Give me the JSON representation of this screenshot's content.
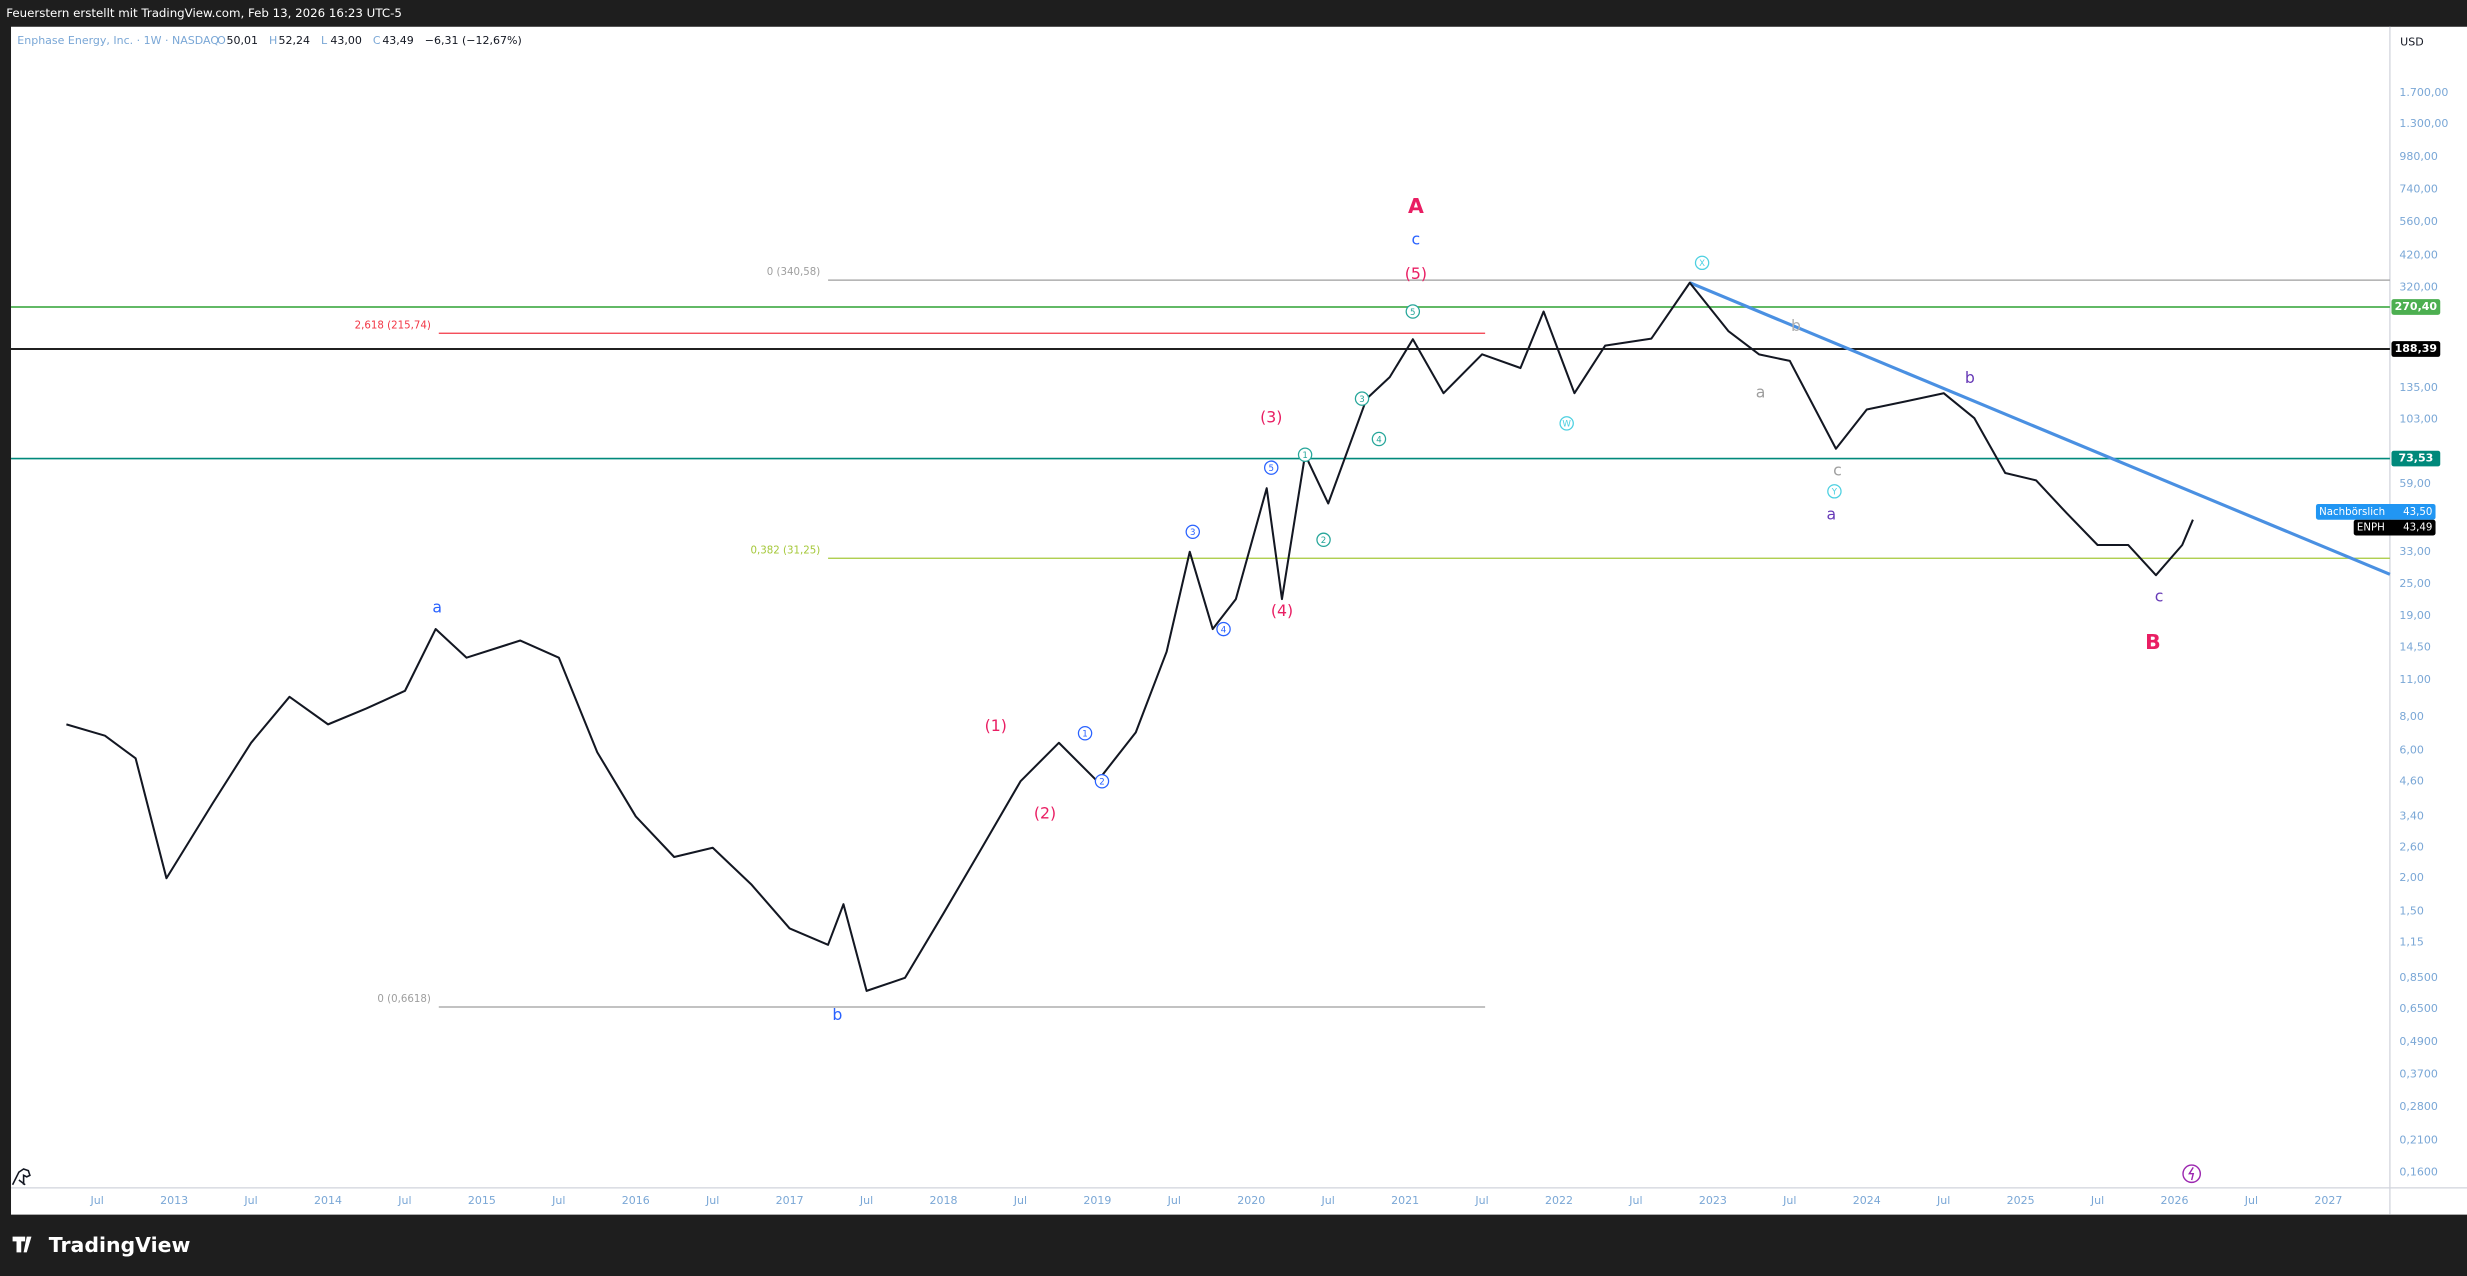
{
  "header": {
    "caption": "Feuerstern erstellt mit TradingView.com, Feb 13, 2026 16:23 UTC-5",
    "symbol": "Enphase Energy, Inc. · 1W · NASDAQ",
    "ohlc": [
      {
        "key": "O",
        "label": "50,01"
      },
      {
        "key": "H",
        "label": "52,24"
      },
      {
        "key": "L",
        "label": "43,00"
      },
      {
        "key": "C",
        "label": "43,49"
      }
    ],
    "change": "−6,31 (−12,67%)",
    "currency": "USD"
  },
  "footer": {
    "brand": "TradingView"
  },
  "chart_data": {
    "type": "line",
    "ylog": true,
    "grid": false,
    "xlim": [
      2011.94,
      2027.4
    ],
    "ylim": [
      0.14,
      3000
    ],
    "xticks": [
      {
        "value": 2012.5,
        "label": "Jul"
      },
      2013,
      {
        "value": 2013.5,
        "label": "Jul"
      },
      2014,
      {
        "value": 2014.5,
        "label": "Jul"
      },
      2015,
      {
        "value": 2015.5,
        "label": "Jul"
      },
      2016,
      {
        "value": 2016.5,
        "label": "Jul"
      },
      2017,
      {
        "value": 2017.5,
        "label": "Jul"
      },
      2018,
      {
        "value": 2018.5,
        "label": "Jul"
      },
      2019,
      {
        "value": 2019.5,
        "label": "Jul"
      },
      2020,
      {
        "value": 2020.5,
        "label": "Jul"
      },
      2021,
      {
        "value": 2021.5,
        "label": "Jul"
      },
      2022,
      {
        "value": 2022.5,
        "label": "Jul"
      },
      2023,
      {
        "value": 2023.5,
        "label": "Jul"
      },
      2024,
      {
        "value": 2024.5,
        "label": "Jul"
      },
      2025,
      {
        "value": 2025.5,
        "label": "Jul"
      },
      2026,
      {
        "value": 2026.5,
        "label": "Jul"
      },
      2027
    ],
    "yticks": [
      {
        "value": 1700,
        "label": "1.700,00"
      },
      {
        "value": 1300,
        "label": "1.300,00"
      },
      {
        "value": 980,
        "label": "980,00"
      },
      {
        "value": 740,
        "label": "740,00"
      },
      {
        "value": 560,
        "label": "560,00"
      },
      {
        "value": 420,
        "label": "420,00"
      },
      {
        "value": 320,
        "label": "320,00"
      },
      {
        "value": 135,
        "label": "135,00"
      },
      {
        "value": 103,
        "label": "103,00"
      },
      {
        "value": 59,
        "label": "59,00"
      },
      {
        "value": 33,
        "label": "33,00"
      },
      {
        "value": 25,
        "label": "25,00"
      },
      {
        "value": 19,
        "label": "19,00"
      },
      {
        "value": 14.5,
        "label": "14,50"
      },
      {
        "value": 11,
        "label": "11,00"
      },
      {
        "value": 8,
        "label": "8,00"
      },
      {
        "value": 6,
        "label": "6,00"
      },
      {
        "value": 4.6,
        "label": "4,60"
      },
      {
        "value": 3.4,
        "label": "3,40"
      },
      {
        "value": 2.6,
        "label": "2,60"
      },
      {
        "value": 2,
        "label": "2,00"
      },
      {
        "value": 1.5,
        "label": "1,50"
      },
      {
        "value": 1.15,
        "label": "1,15"
      },
      {
        "value": 0.85,
        "label": "0,8500"
      },
      {
        "value": 0.65,
        "label": "0,6500"
      },
      {
        "value": 0.49,
        "label": "0,4900"
      },
      {
        "value": 0.37,
        "label": "0,3700"
      },
      {
        "value": 0.28,
        "label": "0,2800"
      },
      {
        "value": 0.21,
        "label": "0,2100"
      },
      {
        "value": 0.16,
        "label": "0,1600"
      }
    ],
    "series": [
      {
        "name": "ENPH",
        "color": "#131722",
        "x": [
          2012.3,
          2012.55,
          2012.75,
          2012.95,
          2013.25,
          2013.5,
          2013.75,
          2014.0,
          2014.25,
          2014.5,
          2014.7,
          2014.9,
          2015.25,
          2015.5,
          2015.75,
          2016.0,
          2016.25,
          2016.5,
          2016.75,
          2017.0,
          2017.25,
          2017.35,
          2017.5,
          2017.75,
          2018.0,
          2018.25,
          2018.5,
          2018.75,
          2019.0,
          2019.25,
          2019.45,
          2019.6,
          2019.75,
          2019.9,
          2020.1,
          2020.2,
          2020.35,
          2020.5,
          2020.75,
          2020.9,
          2021.05,
          2021.25,
          2021.5,
          2021.75,
          2021.9,
          2022.1,
          2022.3,
          2022.6,
          2022.85,
          2023.1,
          2023.3,
          2023.5,
          2023.8,
          2024.0,
          2024.25,
          2024.5,
          2024.7,
          2024.9,
          2025.1,
          2025.3,
          2025.5,
          2025.7,
          2025.88,
          2026.05,
          2026.12
        ],
        "values": [
          7.5,
          6.8,
          5.6,
          2.0,
          3.8,
          6.4,
          9.5,
          7.5,
          8.6,
          10,
          17,
          13.3,
          15.4,
          13.3,
          5.9,
          3.4,
          2.4,
          2.6,
          1.9,
          1.3,
          1.13,
          1.6,
          0.76,
          0.85,
          1.48,
          2.6,
          4.6,
          6.4,
          4.6,
          7.0,
          14,
          33,
          17,
          22,
          57,
          22,
          76,
          50,
          123,
          148,
          205,
          129,
          180,
          160,
          260,
          129,
          194,
          206,
          333,
          220,
          180,
          170,
          80,
          112,
          120,
          129,
          104,
          65,
          61,
          46,
          35,
          35,
          27,
          35,
          43.49
        ]
      }
    ],
    "levels": [
      {
        "value": 270.4,
        "label": "270,40",
        "color": "#4caf50"
      },
      {
        "value": 188.39,
        "label": "188,39",
        "color": "#000000"
      },
      {
        "value": 73.53,
        "label": "73,53",
        "color": "#00897b"
      }
    ],
    "fib_lines": [
      {
        "value": 340.58,
        "label": "0 (340,58)",
        "x": [
          2017.25,
          2027.4
        ],
        "color": "#9e9e9e"
      },
      {
        "value": 215.74,
        "label": "2,618 (215,74)",
        "x": [
          2014.72,
          2021.52
        ],
        "color": "#f23645"
      },
      {
        "value": 31.25,
        "label": "0,382 (31,25)",
        "x": [
          2017.25,
          2027.4
        ],
        "color": "#a5c83a"
      },
      {
        "value": 0.6618,
        "label": "0 (0,6618)",
        "x": [
          2014.72,
          2021.52
        ],
        "color": "#9e9e9e"
      }
    ],
    "trendline": {
      "x": [
        2022.85,
        2027.4
      ],
      "y": [
        333,
        27.2
      ],
      "color": "#4a90e2"
    },
    "after_hours": {
      "name": "Nachbörslich",
      "value": 43.5,
      "label": "43,50",
      "color": "#2196f3"
    },
    "last_price": {
      "name": "ENPH",
      "value": 43.49,
      "label": "43,49",
      "color": "#000000"
    },
    "annotations": [
      {
        "text": "A",
        "x": 2021.07,
        "y": 642,
        "color": "#e91e63",
        "emphasis": true,
        "circled": false
      },
      {
        "text": "c",
        "x": 2021.07,
        "y": 484,
        "color": "#2962ff",
        "emphasis": false,
        "circled": false
      },
      {
        "text": "(5)",
        "x": 2021.07,
        "y": 360,
        "color": "#e91e63",
        "emphasis": false,
        "circled": false
      },
      {
        "text": "(3)",
        "x": 2020.13,
        "y": 105,
        "color": "#e91e63",
        "emphasis": false,
        "circled": false
      },
      {
        "text": "(4)",
        "x": 2020.2,
        "y": 19.9,
        "color": "#e91e63",
        "emphasis": false,
        "circled": false
      },
      {
        "text": "(1)",
        "x": 2018.34,
        "y": 7.4,
        "color": "#e91e63",
        "emphasis": false,
        "circled": false
      },
      {
        "text": "(2)",
        "x": 2018.66,
        "y": 3.5,
        "color": "#e91e63",
        "emphasis": false,
        "circled": false
      },
      {
        "text": "a",
        "x": 2014.71,
        "y": 20.5,
        "color": "#2962ff",
        "emphasis": false,
        "circled": false
      },
      {
        "text": "b",
        "x": 2017.31,
        "y": 0.62,
        "color": "#2962ff",
        "emphasis": false,
        "circled": false
      },
      {
        "text": "a",
        "x": 2023.77,
        "y": 45.5,
        "color": "#673ab7",
        "emphasis": false,
        "circled": false
      },
      {
        "text": "b",
        "x": 2024.67,
        "y": 147,
        "color": "#673ab7",
        "emphasis": false,
        "circled": false
      },
      {
        "text": "c",
        "x": 2025.9,
        "y": 22.5,
        "color": "#673ab7",
        "emphasis": false,
        "circled": false
      },
      {
        "text": "B",
        "x": 2025.86,
        "y": 15.2,
        "color": "#e91e63",
        "emphasis": true,
        "circled": false
      },
      {
        "text": "a",
        "x": 2023.31,
        "y": 130,
        "color": "#9e9e9e",
        "emphasis": false,
        "circled": false
      },
      {
        "text": "b",
        "x": 2023.54,
        "y": 230,
        "color": "#b0b0b0",
        "emphasis": false,
        "circled": false
      },
      {
        "text": "c",
        "x": 2023.81,
        "y": 66.5,
        "color": "#9e9e9e",
        "emphasis": false,
        "circled": false
      },
      {
        "text": "1",
        "x": 2018.92,
        "y": 6.95,
        "color": "#2962ff",
        "emphasis": false,
        "circled": true
      },
      {
        "text": "2",
        "x": 2019.03,
        "y": 4.6,
        "color": "#2962ff",
        "emphasis": false,
        "circled": true
      },
      {
        "text": "3",
        "x": 2019.62,
        "y": 39.2,
        "color": "#2962ff",
        "emphasis": false,
        "circled": true
      },
      {
        "text": "4",
        "x": 2019.82,
        "y": 17,
        "color": "#2962ff",
        "emphasis": false,
        "circled": true
      },
      {
        "text": "5",
        "x": 2020.13,
        "y": 68,
        "color": "#2962ff",
        "emphasis": false,
        "circled": true
      },
      {
        "text": "1",
        "x": 2020.35,
        "y": 76,
        "color": "#26a69a",
        "emphasis": false,
        "circled": true
      },
      {
        "text": "2",
        "x": 2020.47,
        "y": 36.6,
        "color": "#26a69a",
        "emphasis": false,
        "circled": true
      },
      {
        "text": "3",
        "x": 2020.72,
        "y": 123,
        "color": "#26a69a",
        "emphasis": false,
        "circled": true
      },
      {
        "text": "4",
        "x": 2020.83,
        "y": 87,
        "color": "#26a69a",
        "emphasis": false,
        "circled": true
      },
      {
        "text": "5",
        "x": 2021.05,
        "y": 260,
        "color": "#26a69a",
        "emphasis": false,
        "circled": true
      },
      {
        "text": "W",
        "x": 2022.05,
        "y": 99.5,
        "color": "#4dd0e1",
        "emphasis": false,
        "circled": true
      },
      {
        "text": "X",
        "x": 2022.93,
        "y": 395,
        "color": "#4dd0e1",
        "emphasis": false,
        "circled": true
      },
      {
        "text": "Y",
        "x": 2023.79,
        "y": 55.5,
        "color": "#4dd0e1",
        "emphasis": false,
        "circled": true
      }
    ]
  }
}
